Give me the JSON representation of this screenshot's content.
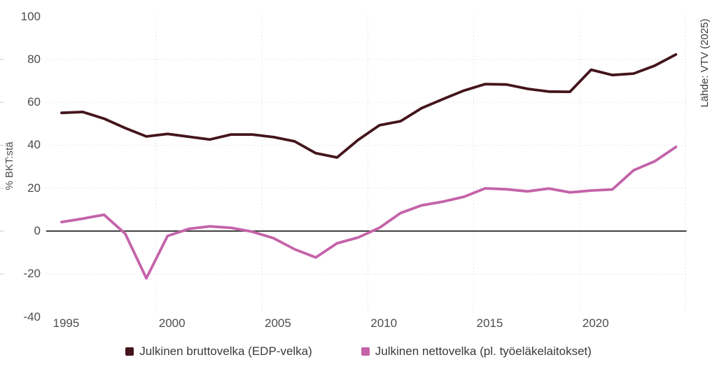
{
  "source_label": "Lähde: VTV (2025)",
  "y_axis": {
    "label": "% BKT:stä",
    "ticks": [
      100,
      80,
      60,
      40,
      20,
      0,
      -20,
      -40
    ],
    "grid_values": [
      80,
      60,
      40,
      20,
      -20
    ],
    "zero_line_value": 0
  },
  "x_axis": {
    "ticks": [
      1995,
      2000,
      2005,
      2010,
      2015,
      2020
    ],
    "grid_years": [
      2000,
      2005,
      2010,
      2015,
      2020,
      2025
    ]
  },
  "legend": [
    {
      "label": "Julkinen bruttovelka (EDP-velka)",
      "color": "#44151c"
    },
    {
      "label": "Julkinen nettovelka (pl. työeläkelaitokset)",
      "color": "#c463a9"
    }
  ],
  "colors": {
    "grid": "#d9d9d9",
    "zero_line": "#414141",
    "tick_text": "#4d4d4d"
  },
  "chart_data": {
    "type": "line",
    "x": [
      1995,
      1996,
      1997,
      1998,
      1999,
      2000,
      2001,
      2002,
      2003,
      2004,
      2005,
      2006,
      2007,
      2008,
      2009,
      2010,
      2011,
      2012,
      2013,
      2014,
      2015,
      2016,
      2017,
      2018,
      2019,
      2020,
      2021,
      2022,
      2023,
      2024
    ],
    "series": [
      {
        "name": "Julkinen bruttovelka (EDP-velka)",
        "color": "#44151c",
        "values": [
          55.1,
          55.5,
          52.4,
          48.0,
          44.1,
          45.3,
          44.0,
          42.7,
          45.0,
          45.0,
          43.8,
          41.8,
          36.3,
          34.3,
          42.5,
          49.3,
          51.2,
          57.3,
          61.5,
          65.5,
          68.5,
          68.3,
          66.3,
          65.0,
          64.9,
          75.2,
          72.7,
          73.4,
          77.1,
          82.3
        ]
      },
      {
        "name": "Julkinen nettovelka (pl. työeläkelaitokset)",
        "color": "#c463a9",
        "values": [
          4.2,
          5.8,
          7.6,
          -1.2,
          -22.0,
          -2.3,
          1.0,
          2.2,
          1.5,
          -0.3,
          -3.3,
          -8.5,
          -12.3,
          -5.7,
          -3.0,
          1.5,
          8.4,
          12.0,
          13.7,
          16.0,
          19.9,
          19.5,
          18.5,
          19.8,
          18.0,
          18.9,
          19.4,
          28.3,
          32.5,
          39.2
        ]
      }
    ],
    "title": "",
    "xlabel": "",
    "ylabel": "% BKT:stä",
    "ylim": [
      -40,
      100
    ],
    "x_range": [
      1995,
      2024
    ],
    "grid": true,
    "legend_position": "bottom"
  }
}
